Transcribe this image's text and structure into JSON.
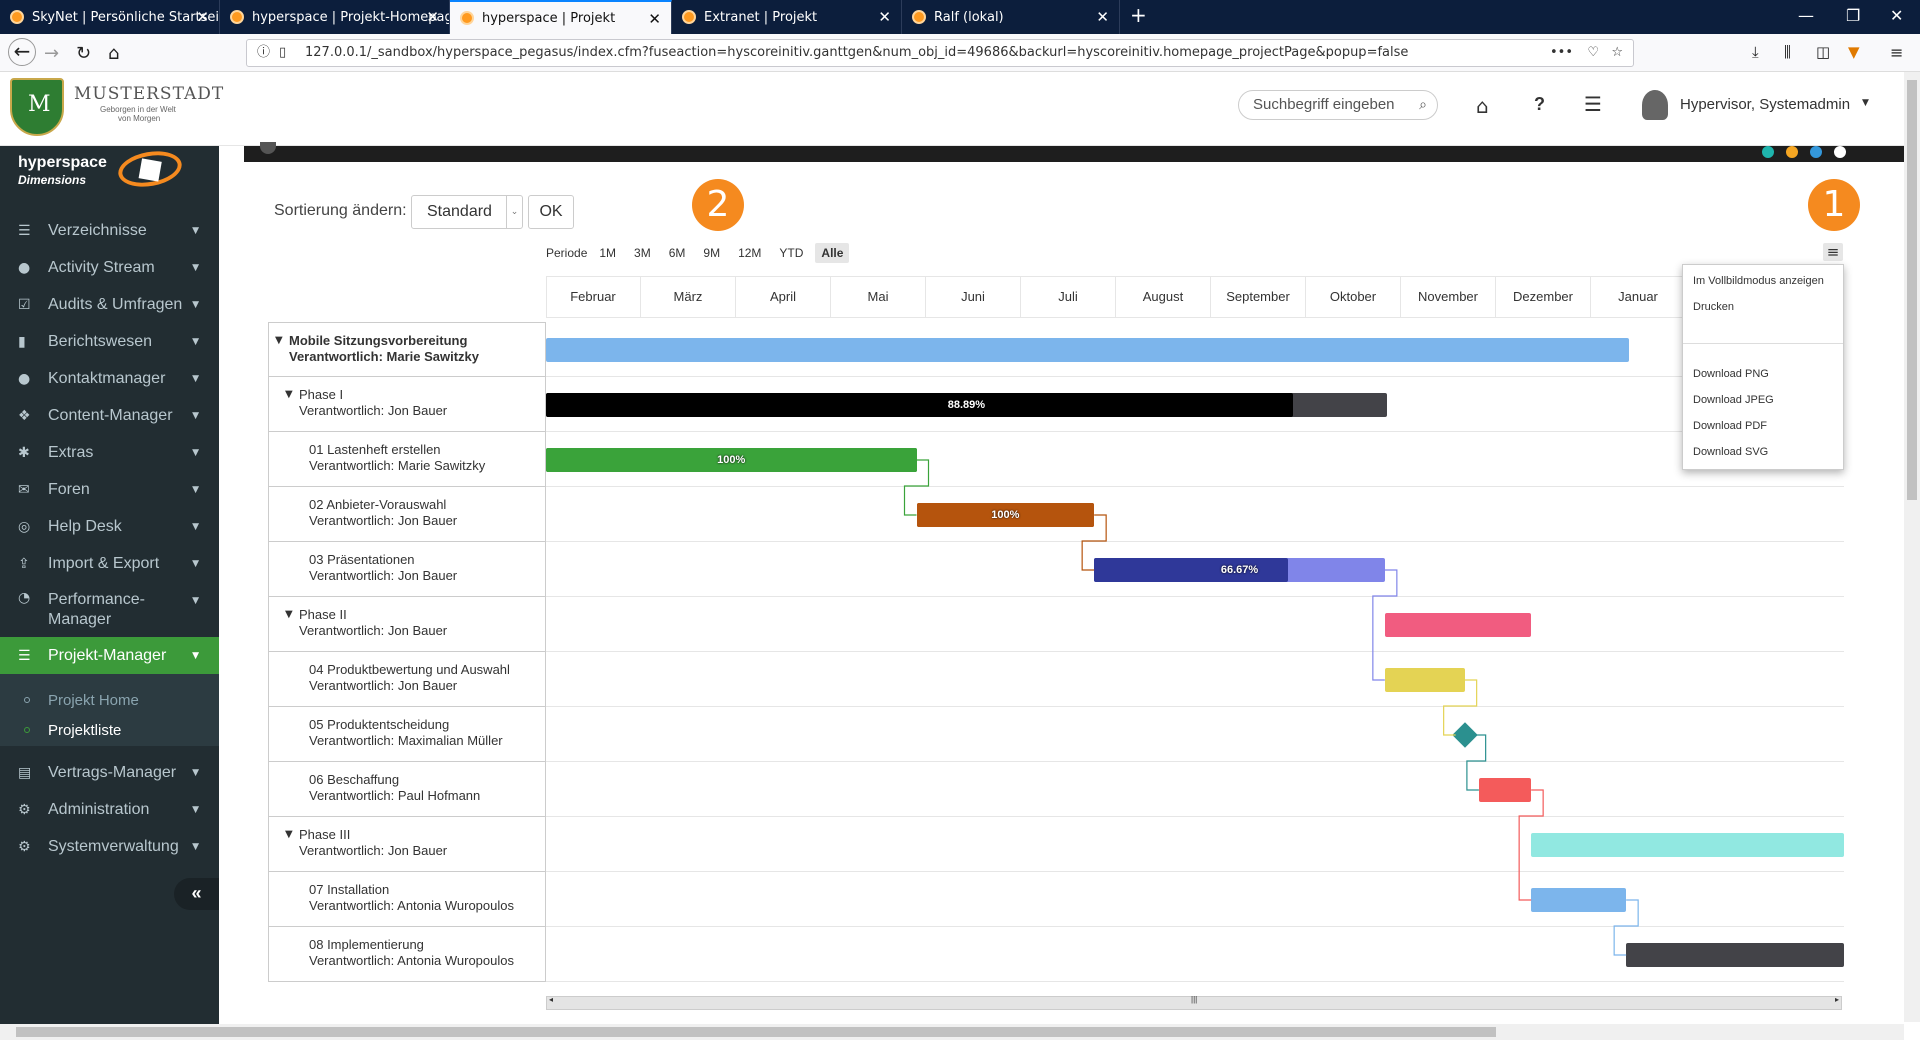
{
  "browser": {
    "tabs": [
      {
        "title": "SkyNet | Persönliche Startseite"
      },
      {
        "title": "hyperspace | Projekt-Homepag"
      },
      {
        "title": "hyperspace | Projekt"
      },
      {
        "title": "Extranet | Projekt"
      },
      {
        "title": "Ralf (lokal)"
      }
    ],
    "url": "127.0.0.1/_sandbox/hyperspace_pegasus/index.cfm?fuseaction=hyscoreinitiv.ganttgen&num_obj_id=49686&backurl=hyscoreinitiv.homepage_projectPage&popup=false"
  },
  "header": {
    "brand": "MUSTERSTADT",
    "tagline1": "Geborgen in der Welt",
    "tagline2": "von Morgen",
    "search_placeholder": "Suchbegriff eingeben",
    "user": "Hypervisor, Systemadmin"
  },
  "sidebar": {
    "logo_line1": "hyperspace",
    "logo_line2": "Dimensions",
    "items": [
      {
        "label": "Verzeichnisse",
        "icon": "list-icon"
      },
      {
        "label": "Activity Stream",
        "icon": "info-icon"
      },
      {
        "label": "Audits & Umfragen",
        "icon": "check-icon"
      },
      {
        "label": "Berichtswesen",
        "icon": "chart-icon"
      },
      {
        "label": "Kontaktmanager",
        "icon": "user-icon"
      },
      {
        "label": "Content-Manager",
        "icon": "cubes-icon"
      },
      {
        "label": "Extras",
        "icon": "asterisk-icon"
      },
      {
        "label": "Foren",
        "icon": "comments-icon"
      },
      {
        "label": "Help Desk",
        "icon": "lifebuoy-icon"
      },
      {
        "label": "Import & Export",
        "icon": "upload-icon"
      },
      {
        "label": "Performance-Manager",
        "icon": "dashboard-icon"
      },
      {
        "label": "Projekt-Manager",
        "icon": "tasks-icon"
      }
    ],
    "subitems": [
      {
        "label": "Projekt Home"
      },
      {
        "label": "Projektliste"
      }
    ],
    "items2": [
      {
        "label": "Vertrags-Manager",
        "icon": "contract-icon"
      },
      {
        "label": "Administration",
        "icon": "gear-icon"
      },
      {
        "label": "Systemverwaltung",
        "icon": "gears-icon"
      }
    ]
  },
  "controls": {
    "sort_label": "Sortierung ändern:",
    "sort_value": "Standard",
    "ok": "OK",
    "badge1": "1",
    "badge2": "2",
    "periode": "Periode",
    "periods": [
      "1M",
      "3M",
      "6M",
      "9M",
      "12M",
      "YTD",
      "Alle"
    ],
    "selected_period": "Alle"
  },
  "gantt": {
    "months": [
      "Februar",
      "März",
      "April",
      "Mai",
      "Juni",
      "Juli",
      "August",
      "September",
      "Oktober",
      "November",
      "Dezember",
      "Januar"
    ],
    "rows": [
      {
        "title": "Mobile Sitzungsvorbereitung",
        "sub": "Verantwortlich: Marie Sawitzky",
        "level": 0,
        "collapsible": true,
        "bar": {
          "start": 0.0,
          "end": 11.4,
          "color": "#7cb5ec"
        }
      },
      {
        "title": "Phase I",
        "sub": "Verantwortlich: Jon Bauer",
        "level": 1,
        "collapsible": true,
        "bar": {
          "start": 0.0,
          "end": 8.85,
          "color": "#434348",
          "progress": 0.8889,
          "progress_color": "#000000",
          "label": "88.89%"
        }
      },
      {
        "title": "01 Lastenheft erstellen",
        "sub": "Verantwortlich: Marie Sawitzky",
        "level": 2,
        "bar": {
          "start": 0.0,
          "end": 3.9,
          "color": "#3aa33a",
          "progress": 1.0,
          "progress_color": "#3aa33a",
          "label": "100%"
        }
      },
      {
        "title": "02 Anbieter-Vorauswahl",
        "sub": "Verantwortlich: Jon Bauer",
        "level": 2,
        "bar": {
          "start": 3.9,
          "end": 5.77,
          "color": "#b5540d",
          "progress": 1.0,
          "progress_color": "#b5540d",
          "label": "100%"
        }
      },
      {
        "title": "03 Präsentationen",
        "sub": "Verantwortlich: Jon Bauer",
        "level": 2,
        "bar": {
          "start": 5.77,
          "end": 8.83,
          "color": "#8085e9",
          "progress": 0.6667,
          "progress_color": "#2f3899",
          "label": "66.67%"
        }
      },
      {
        "title": "Phase II",
        "sub": "Verantwortlich: Jon Bauer",
        "level": 1,
        "collapsible": true,
        "bar": {
          "start": 8.83,
          "end": 10.37,
          "color": "#f15c80"
        }
      },
      {
        "title": "04 Produktbewertung und Auswahl",
        "sub": "Verantwortlich: Jon Bauer",
        "level": 2,
        "bar": {
          "start": 8.83,
          "end": 9.67,
          "color": "#e4d354"
        }
      },
      {
        "title": "05 Produktentscheidung",
        "sub": "Verantwortlich: Maximalian Müller",
        "level": 2,
        "milestone": {
          "at": 9.67,
          "color": "#2b908f"
        }
      },
      {
        "title": "06 Beschaffung",
        "sub": "Verantwortlich: Paul Hofmann",
        "level": 2,
        "bar": {
          "start": 9.82,
          "end": 10.37,
          "color": "#f45b5b"
        }
      },
      {
        "title": "Phase III",
        "sub": "Verantwortlich: Jon Bauer",
        "level": 1,
        "collapsible": true,
        "bar": {
          "start": 10.37,
          "end": 13.8,
          "color": "#91e8e1"
        }
      },
      {
        "title": "07 Installation",
        "sub": "Verantwortlich: Antonia Wuropoulos",
        "level": 2,
        "bar": {
          "start": 10.37,
          "end": 11.37,
          "color": "#7cb5ec"
        }
      },
      {
        "title": "08 Implementierung",
        "sub": "Verantwortlich: Antonia Wuropoulos",
        "level": 2,
        "bar": {
          "start": 11.37,
          "end": 13.8,
          "color": "#434348"
        }
      }
    ]
  },
  "export_menu": {
    "items": [
      "Im Vollbildmodus anzeigen",
      "Drucken",
      "Download PNG",
      "Download JPEG",
      "Download PDF",
      "Download SVG"
    ]
  }
}
